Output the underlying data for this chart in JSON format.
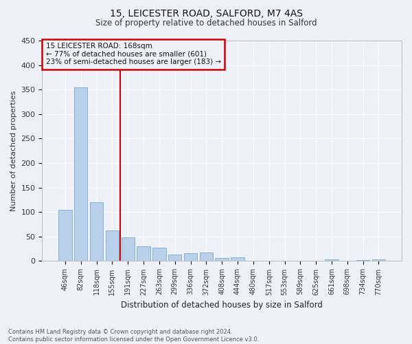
{
  "title1": "15, LEICESTER ROAD, SALFORD, M7 4AS",
  "title2": "Size of property relative to detached houses in Salford",
  "xlabel": "Distribution of detached houses by size in Salford",
  "ylabel": "Number of detached properties",
  "categories": [
    "46sqm",
    "82sqm",
    "118sqm",
    "155sqm",
    "191sqm",
    "227sqm",
    "263sqm",
    "299sqm",
    "336sqm",
    "372sqm",
    "408sqm",
    "444sqm",
    "480sqm",
    "517sqm",
    "553sqm",
    "589sqm",
    "625sqm",
    "661sqm",
    "698sqm",
    "734sqm",
    "770sqm"
  ],
  "values": [
    104,
    355,
    120,
    62,
    49,
    30,
    27,
    13,
    16,
    17,
    6,
    8,
    0,
    0,
    0,
    0,
    0,
    3,
    0,
    2,
    3
  ],
  "bar_color": "#b8d0ea",
  "bar_edge_color": "#7aaad0",
  "vline_x": 3.5,
  "vline_color": "#cc0000",
  "annotation_lines": [
    "15 LEICESTER ROAD: 168sqm",
    "← 77% of detached houses are smaller (601)",
    "23% of semi-detached houses are larger (183) →"
  ],
  "annotation_box_color": "#cc0000",
  "footer": "Contains HM Land Registry data © Crown copyright and database right 2024.\nContains public sector information licensed under the Open Government Licence v3.0.",
  "bg_color": "#eef2f8",
  "grid_color": "#ffffff",
  "ylim": [
    0,
    450
  ],
  "yticks": [
    0,
    50,
    100,
    150,
    200,
    250,
    300,
    350,
    400,
    450
  ]
}
